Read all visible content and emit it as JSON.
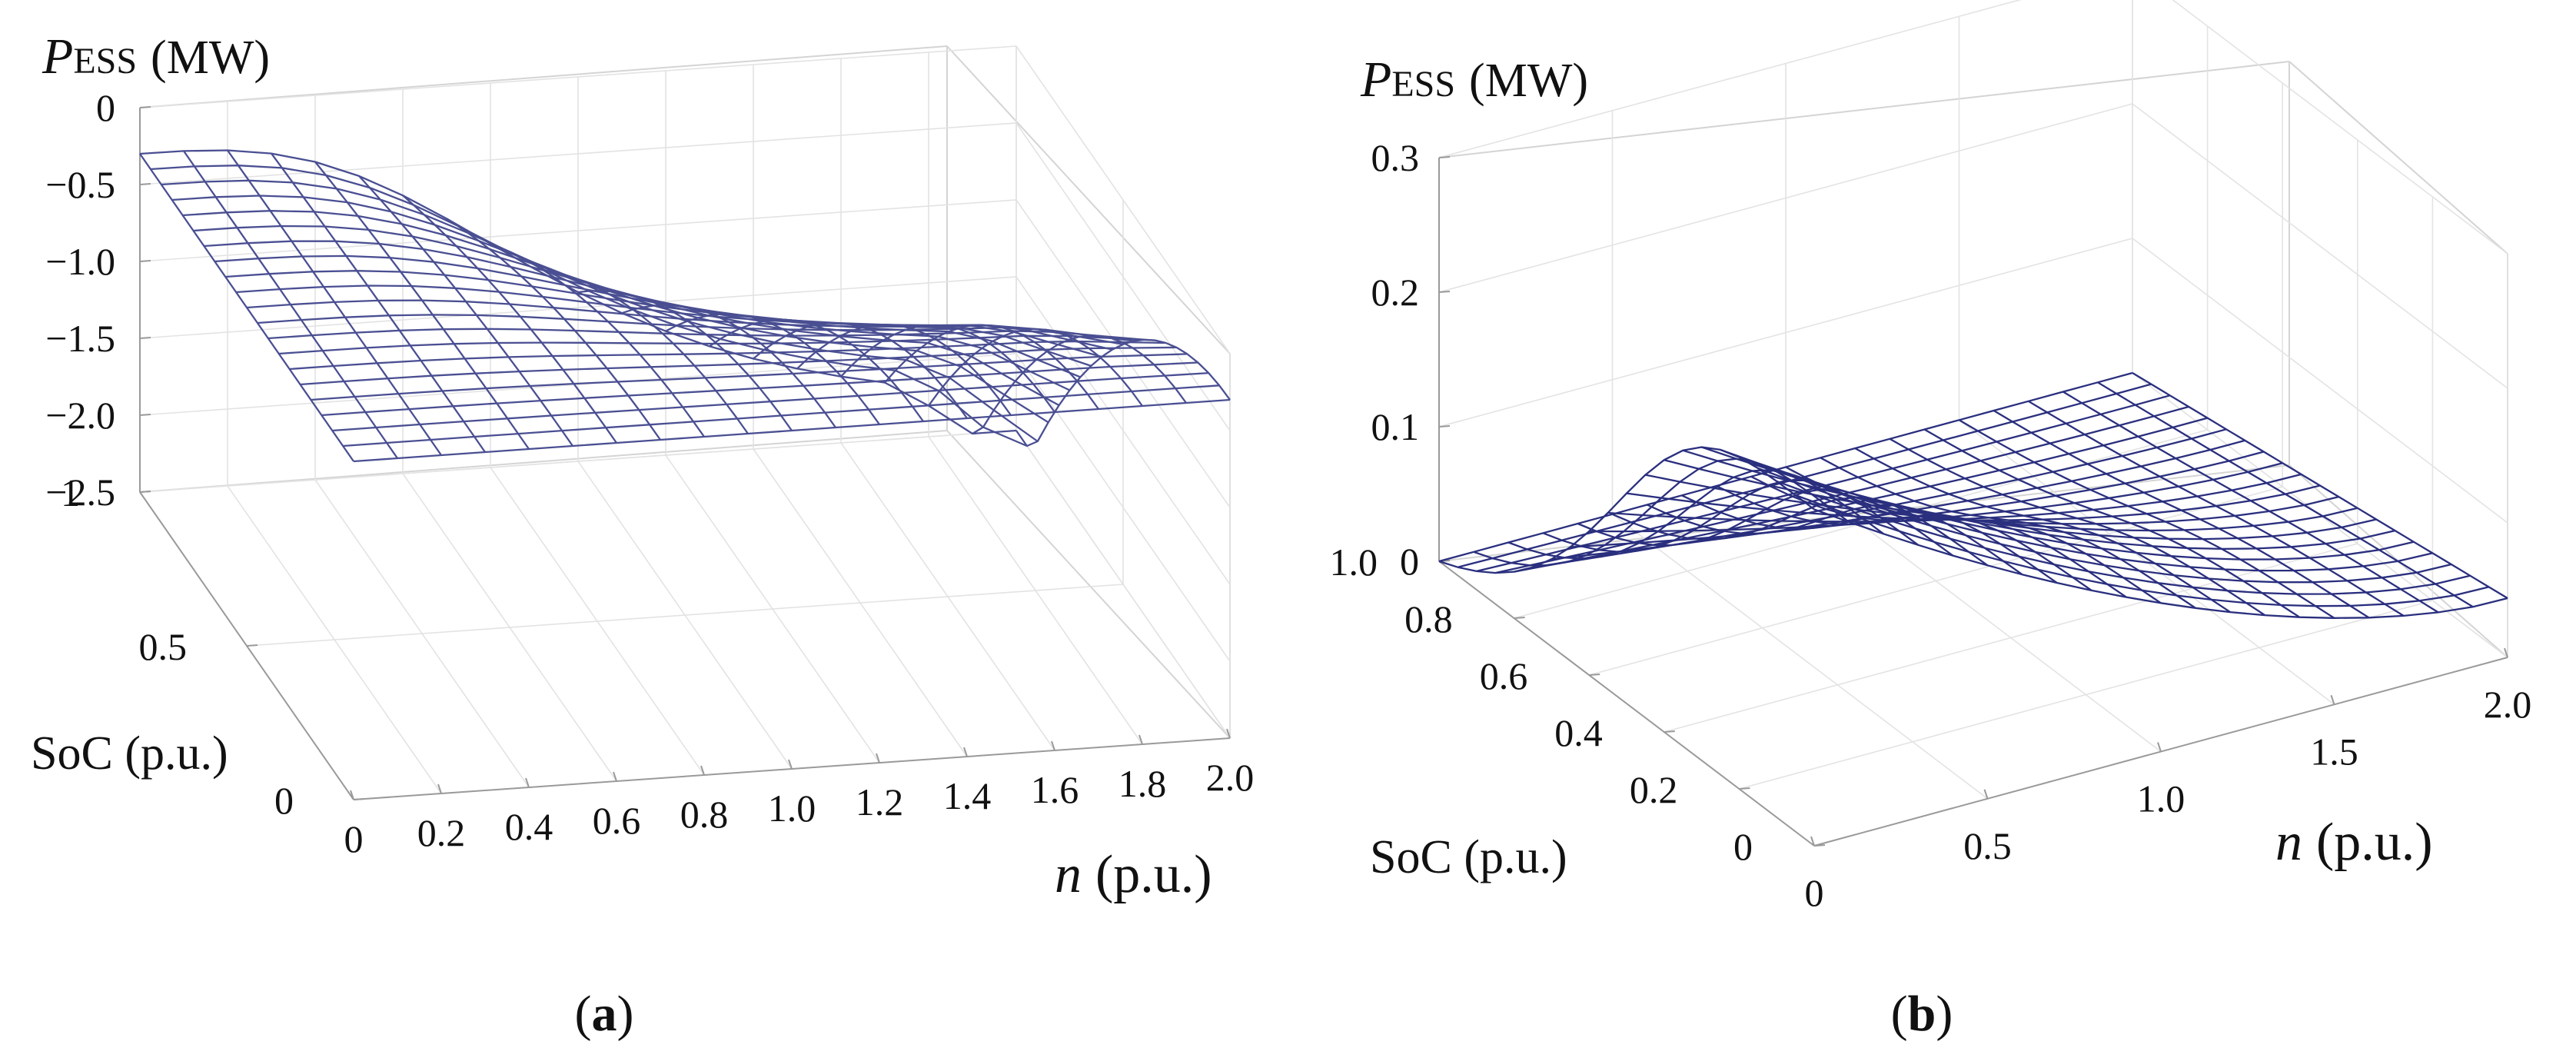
{
  "colors": {
    "mesh_a": "#4a4f92",
    "mesh_b": "#2a2f7e",
    "axis": "#9a9a9a",
    "grid": "#e3e3e3",
    "text": "#111111"
  },
  "chart_data": [
    {
      "panel_label": "a",
      "type": "surface",
      "zlabel": {
        "main": "P",
        "subscript": "ESS",
        "unit": "(MW)"
      },
      "ylabel": "SoC (p.u.)",
      "xlabel": {
        "var": "n",
        "unit": "(p.u.)"
      },
      "x_ticks": [
        "0",
        "0.2",
        "0.4",
        "0.6",
        "0.8",
        "1.0",
        "1.2",
        "1.4",
        "1.6",
        "1.8",
        "2.0"
      ],
      "y_ticks": [
        "0",
        "0.5",
        "1"
      ],
      "z_ticks": [
        "0",
        "−0.5",
        "−1.0",
        "−1.5",
        "−2.0",
        "−2.5"
      ],
      "xlim": [
        0,
        2.0
      ],
      "ylim": [
        0,
        1
      ],
      "zlim": [
        -2.5,
        0
      ],
      "grid_n": 21,
      "surface_description": "P_ESS = -0.3 - 2.2*SoC^2*n^3/(1+n^3); surface clipped at -2.5 MW",
      "sample_points": [
        {
          "n": 0.0,
          "soc": 1.0,
          "p_mw": -0.3
        },
        {
          "n": 0.5,
          "soc": 1.0,
          "p_mw": -0.54
        },
        {
          "n": 1.0,
          "soc": 1.0,
          "p_mw": -1.4
        },
        {
          "n": 2.0,
          "soc": 1.0,
          "p_mw": -2.26
        },
        {
          "n": 2.0,
          "soc": 0.0,
          "p_mw": -0.3
        }
      ]
    },
    {
      "panel_label": "b",
      "type": "surface",
      "zlabel": {
        "main": "P",
        "subscript": "ESS",
        "unit": "(MW)"
      },
      "ylabel": "SoC (p.u.)",
      "xlabel": {
        "var": "n",
        "unit": "(p.u.)"
      },
      "x_ticks": [
        "0",
        "0.5",
        "1.0",
        "1.5",
        "2.0"
      ],
      "y_ticks": [
        "0",
        "0.2",
        "0.4",
        "0.6",
        "0.8",
        "1.0"
      ],
      "z_ticks": [
        "0",
        "0.1",
        "0.2",
        "0.3"
      ],
      "xlim": [
        0,
        2.0
      ],
      "ylim": [
        0,
        1.0
      ],
      "zlim": [
        0,
        0.3
      ],
      "grid_n": 21,
      "surface_description": "P_ESS = 0.25*(1-n/2)^1.5 * (1-SoC^4)/(1+8*SoC^4) + 0.022*n*(1-SoC)",
      "sample_points": [
        {
          "n": 0.0,
          "soc": 0.0,
          "p_mw": 0.25
        },
        {
          "n": 2.0,
          "soc": 0.0,
          "p_mw": 0.044
        },
        {
          "n": 2.0,
          "soc": 1.0,
          "p_mw": 0.0
        },
        {
          "n": 0.0,
          "soc": 1.0,
          "p_mw": 0.0
        }
      ]
    }
  ]
}
